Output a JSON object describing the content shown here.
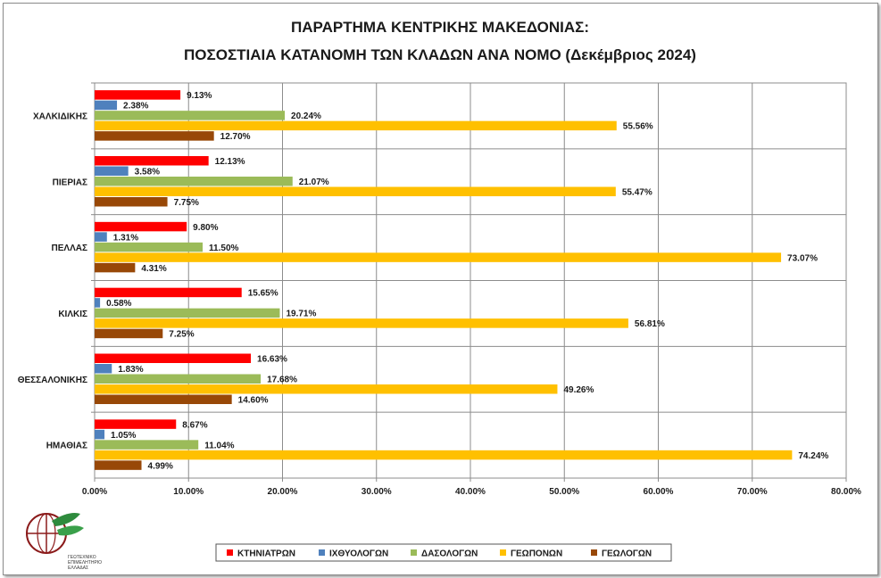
{
  "chart_data": {
    "type": "bar",
    "orientation": "horizontal",
    "title": "ΠΑΡΑΡΤΗΜΑ ΚΕΝΤΡΙΚΗΣ ΜΑΚΕΔΟΝΙΑΣ:",
    "subtitle": "ΠΟΣΟΣΤΙΑΙΑ ΚΑΤΑΝΟΜΗ ΤΩΝ ΚΛΑΔΩΝ ΑΝΑ ΝΟΜΟ (Δεκέμβριος 2024)",
    "categories": [
      "ΧΑΛΚΙΔΙΚΗΣ",
      "ΠΙΕΡΙΑΣ",
      "ΠΕΛΛΑΣ",
      "ΚΙΛΚΙΣ",
      "ΘΕΣΣΑΛΟΝΙΚΗΣ",
      "ΗΜΑΘΙΑΣ"
    ],
    "series": [
      {
        "name": "ΚΤΗΝΙΑΤΡΩΝ",
        "color": "#ff0000",
        "values": [
          9.13,
          12.13,
          9.8,
          15.65,
          16.63,
          8.67
        ],
        "labels": [
          "9.13%",
          "12.13%",
          "9.80%",
          "15.65%",
          "16.63%",
          "8.67%"
        ]
      },
      {
        "name": "ΙΧΘΥΟΛΟΓΩΝ",
        "color": "#4f81bd",
        "values": [
          2.38,
          3.58,
          1.31,
          0.58,
          1.83,
          1.05
        ],
        "labels": [
          "2.38%",
          "3.58%",
          "1.31%",
          "0.58%",
          "1.83%",
          "1.05%"
        ]
      },
      {
        "name": "ΔΑΣΟΛΟΓΩΝ",
        "color": "#9bbb59",
        "values": [
          20.24,
          21.07,
          11.5,
          19.71,
          17.68,
          11.04
        ],
        "labels": [
          "20.24%",
          "21.07%",
          "11.50%",
          "19.71%",
          "17.68%",
          "11.04%"
        ]
      },
      {
        "name": "ΓΕΩΠΟΝΩΝ",
        "color": "#ffc000",
        "values": [
          55.56,
          55.47,
          73.07,
          56.81,
          49.26,
          74.24
        ],
        "labels": [
          "55.56%",
          "55.47%",
          "73.07%",
          "56.81%",
          "49.26%",
          "74.24%"
        ]
      },
      {
        "name": "ΓΕΩΛΟΓΩΝ",
        "color": "#984807",
        "values": [
          12.7,
          7.75,
          4.31,
          7.25,
          14.6,
          4.99
        ],
        "labels": [
          "12.70%",
          "7.75%",
          "4.31%",
          "7.25%",
          "14.60%",
          "4.99%"
        ]
      }
    ],
    "xlim": [
      0,
      80
    ],
    "x_ticks": [
      "0.00%",
      "10.00%",
      "20.00%",
      "30.00%",
      "40.00%",
      "50.00%",
      "60.00%",
      "70.00%",
      "80.00%"
    ],
    "grid": true,
    "legend_position": "bottom"
  },
  "logo": {
    "text_line1": "ΓΕΩΤΕΧΝΙΚΟ",
    "text_line2": "ΕΠΙΜΕΛΗΤΗΡΙΟ",
    "text_line3": "ΕΛΛΑΔΑΣ"
  }
}
